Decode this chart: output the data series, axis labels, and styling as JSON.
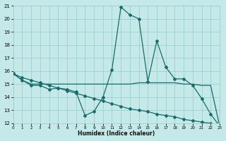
{
  "xlabel": "Humidex (Indice chaleur)",
  "bg_color": "#c5e8e8",
  "grid_color": "#9ecfcf",
  "line_color": "#1a6b6b",
  "xlim": [
    0,
    23
  ],
  "ylim": [
    12,
    21
  ],
  "xticks": [
    0,
    1,
    2,
    3,
    4,
    5,
    6,
    7,
    8,
    9,
    10,
    11,
    12,
    13,
    14,
    15,
    16,
    17,
    18,
    19,
    20,
    21,
    22,
    23
  ],
  "yticks": [
    12,
    13,
    14,
    15,
    16,
    17,
    18,
    19,
    20,
    21
  ],
  "line1_x": [
    0,
    1,
    2,
    3,
    4,
    5,
    6,
    7,
    8,
    9,
    10,
    11,
    12,
    13,
    14,
    15,
    16,
    17,
    18,
    19,
    20,
    21,
    22,
    23
  ],
  "line1_y": [
    15.8,
    15.3,
    14.9,
    14.9,
    14.6,
    14.7,
    14.6,
    14.4,
    12.6,
    12.9,
    14.0,
    16.1,
    20.9,
    20.3,
    20.0,
    15.2,
    18.3,
    16.3,
    15.4,
    15.4,
    14.9,
    13.9,
    12.7,
    11.8
  ],
  "line2_x": [
    0,
    1,
    2,
    3,
    4,
    5,
    6,
    7,
    8,
    9,
    10,
    11,
    12,
    13,
    14,
    15,
    16,
    17,
    18,
    19,
    20,
    21,
    22,
    23
  ],
  "line2_y": [
    15.8,
    15.3,
    15.0,
    15.0,
    15.0,
    15.0,
    15.0,
    15.0,
    15.0,
    15.0,
    15.0,
    15.0,
    15.0,
    15.0,
    15.1,
    15.1,
    15.1,
    15.1,
    15.1,
    15.0,
    15.0,
    14.9,
    14.9,
    11.8
  ],
  "line3_x": [
    0,
    1,
    2,
    3,
    4,
    5,
    6,
    7,
    8,
    9,
    10,
    11,
    12,
    13,
    14,
    15,
    16,
    17,
    18,
    19,
    20,
    21,
    22,
    23
  ],
  "line3_y": [
    15.8,
    15.5,
    15.3,
    15.1,
    14.9,
    14.7,
    14.5,
    14.3,
    14.1,
    13.9,
    13.7,
    13.5,
    13.3,
    13.1,
    13.0,
    12.9,
    12.7,
    12.6,
    12.5,
    12.3,
    12.2,
    12.1,
    12.0,
    11.8
  ]
}
